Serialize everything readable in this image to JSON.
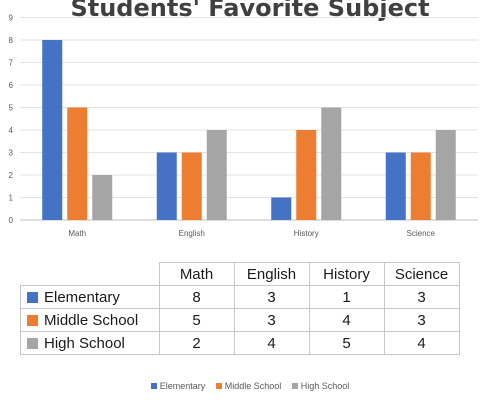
{
  "chart_data": {
    "type": "bar",
    "title": "Students' Favorite Subject",
    "categories": [
      "Math",
      "English",
      "History",
      "Science"
    ],
    "series": [
      {
        "name": "Elementary",
        "values": [
          8,
          3,
          1,
          3
        ],
        "color": "#4472c4"
      },
      {
        "name": "Middle School",
        "values": [
          5,
          3,
          4,
          3
        ],
        "color": "#ed7d31"
      },
      {
        "name": "High School",
        "values": [
          2,
          4,
          5,
          4
        ],
        "color": "#a5a5a5"
      }
    ],
    "yticks": [
      "0",
      "1",
      "2",
      "3",
      "4",
      "5",
      "6",
      "7",
      "8",
      "9"
    ],
    "ylim": [
      0,
      9
    ],
    "grid": true,
    "legend_position": "bottom",
    "xlabel": "",
    "ylabel": "",
    "table_headers": [
      "Math",
      "English",
      "History",
      "Science"
    ]
  }
}
